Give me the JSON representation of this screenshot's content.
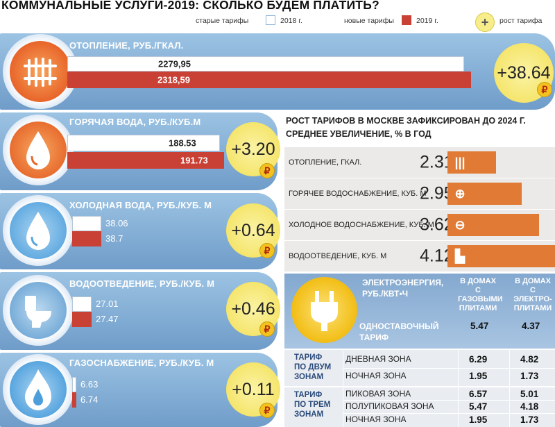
{
  "title": "КОММУНАЛЬНЫЕ УСЛУГИ-2019: СКОЛЬКО БУДЕМ ПЛАТИТЬ?",
  "legend": {
    "old_label": "старые тарифы",
    "old_year": "2018 г.",
    "new_label": "новые тарифы",
    "new_year": "2019 г.",
    "growth_label": "рост тарифа",
    "growth_symbol": "+",
    "old_color": "#ffffff",
    "new_color": "#c94034",
    "growth_color": "#f5e56d"
  },
  "panels": [
    {
      "id": "heating",
      "title": "ОТОПЛЕНИЕ, РУБ./ГКАЛ.",
      "old": "2279,95",
      "new": "2318,59",
      "increase": "+38.64",
      "icon": "radiator-icon"
    },
    {
      "id": "hot_water",
      "title": "ГОРЯЧАЯ ВОДА, РУБ./КУБ.М",
      "old": "188.53",
      "new": "191.73",
      "increase": "+3.20",
      "icon": "water-drop-hot-icon"
    },
    {
      "id": "cold_water",
      "title": "ХОЛОДНАЯ ВОДА, РУБ./КУБ. М",
      "old": "38.06",
      "new": "38.7",
      "increase": "+0.64",
      "icon": "water-drop-cold-icon"
    },
    {
      "id": "sewerage",
      "title": "ВОДООТВЕДЕНИЕ, РУБ./КУБ. М",
      "old": "27.01",
      "new": "27.47",
      "increase": "+0.46",
      "icon": "toilet-icon"
    },
    {
      "id": "gas",
      "title": "ГАЗОСНАБЖЕНИЕ, РУБ./КУБ. М",
      "old": "6.63",
      "new": "6.74",
      "increase": "+0.11",
      "icon": "gas-flame-icon"
    }
  ],
  "ruble_symbol": "₽",
  "growth_section": {
    "title_line1": "РОСТ ТАРИФОВ В МОСКВЕ ЗАФИКСИРОВАН ДО 2024 Г.",
    "title_line2": "СРЕДНЕЕ УВЕЛИЧЕНИЕ, % В ГОД",
    "rows": [
      {
        "label": "ОТОПЛЕНИЕ, ГКАЛ.",
        "value": "2.31",
        "icon": "radiator-icon"
      },
      {
        "label": "ГОРЯЧЕЕ ВОДОСНАБЖЕНИЕ, КУБ. М",
        "value": "2.95",
        "icon": "hot-water-icon"
      },
      {
        "label": "ХОЛОДНОЕ ВОДОСНАБЖЕНИЕ, КУБ. М",
        "value": "3.62",
        "icon": "cold-water-icon"
      },
      {
        "label": "ВОДООТВЕДЕНИЕ, КУБ. М",
        "value": "4.12",
        "icon": "toilet-icon"
      }
    ]
  },
  "electricity": {
    "title_line1": "ЭЛЕКТРОЭНЕРГИЯ,",
    "title_line2": "РУБ./КВТ•Ч",
    "col_gas": [
      "В ДОМАХ",
      "С ГАЗОВЫМИ",
      "ПЛИТАМИ"
    ],
    "col_electric": [
      "В ДОМАХ",
      "С ЭЛЕКТРО-",
      "ПЛИТАМИ"
    ],
    "single_rate_line1": "ОДНОСТАВОЧНЫЙ",
    "single_rate_line2": "ТАРИФ",
    "single_gas": "5.47",
    "single_electric": "4.37",
    "two_zone_label": [
      "ТАРИФ",
      "ПО ДВУМ",
      "ЗОНАМ"
    ],
    "two_zone": [
      {
        "zone": "ДНЕВНАЯ ЗОНА",
        "gas": "6.29",
        "electric": "4.82"
      },
      {
        "zone": "НОЧНАЯ ЗОНА",
        "gas": "1.95",
        "electric": "1.73"
      }
    ],
    "three_zone_label": [
      "ТАРИФ",
      "ПО ТРЕМ",
      "ЗОНАМ"
    ],
    "three_zone": [
      {
        "zone": "ПИКОВАЯ ЗОНА",
        "gas": "6.57",
        "electric": "5.01"
      },
      {
        "zone": "ПОЛУПИКОВАЯ ЗОНА",
        "gas": "5.47",
        "electric": "4.18"
      },
      {
        "zone": "НОЧНАЯ ЗОНА",
        "gas": "1.95",
        "electric": "1.73"
      }
    ]
  },
  "chart_data": [
    {
      "type": "bar",
      "categories": [
        "ОТОПЛЕНИЕ, РУБ./ГКАЛ.",
        "ГОРЯЧАЯ ВОДА, РУБ./КУБ.М",
        "ХОЛОДНАЯ ВОДА, РУБ./КУБ. М",
        "ВОДООТВЕДЕНИЕ, РУБ./КУБ. М",
        "ГАЗОСНАБЖЕНИЕ, РУБ./КУБ. М"
      ],
      "series": [
        {
          "name": "2018 г.",
          "values": [
            2279.95,
            188.53,
            38.06,
            27.01,
            6.63
          ]
        },
        {
          "name": "2019 г.",
          "values": [
            2318.59,
            191.73,
            38.7,
            27.47,
            6.74
          ]
        }
      ],
      "increase": [
        38.64,
        3.2,
        0.64,
        0.46,
        0.11
      ]
    },
    {
      "type": "bar",
      "title": "РОСТ ТАРИФОВ В МОСКВЕ ЗАФИКСИРОВАН ДО 2024 Г. СРЕДНЕЕ УВЕЛИЧЕНИЕ, % В ГОД",
      "categories": [
        "ОТОПЛЕНИЕ, ГКАЛ.",
        "ГОРЯЧЕЕ ВОДОСНАБЖЕНИЕ, КУБ. М",
        "ХОЛОДНОЕ ВОДОСНАБЖЕНИЕ, КУБ. М",
        "ВОДООТВЕДЕНИЕ, КУБ. М"
      ],
      "values": [
        2.31,
        2.95,
        3.62,
        4.12
      ]
    }
  ]
}
